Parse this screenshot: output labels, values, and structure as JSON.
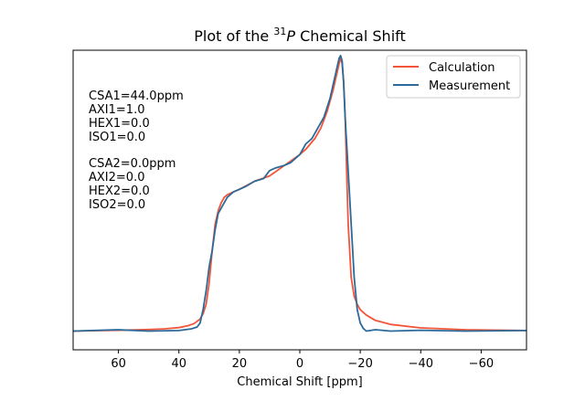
{
  "chart_data": {
    "type": "line",
    "title_main": "Plot of the ",
    "title_sup": "31",
    "title_italic": "P",
    "title_rest": " Chemical Shift",
    "xlabel": "Chemical Shift [ppm]",
    "ylabel": "",
    "xlim": [
      75,
      -75
    ],
    "ylim": [
      -0.07,
      1.05
    ],
    "x_inverted": true,
    "x_ticks": [
      60,
      40,
      20,
      0,
      -20,
      -40,
      -60
    ],
    "x_tick_labels": [
      "60",
      "40",
      "20",
      "0",
      "−20",
      "−40",
      "−60"
    ],
    "y_ticks_shown": false,
    "grid": false,
    "legend_position": "top-right",
    "annotations": [
      [
        "CSA1=44.0ppm",
        "AXI1=1.0",
        "HEX1=0.0",
        "ISO1=0.0"
      ],
      [
        "CSA2=0.0ppm",
        "AXI2=0.0",
        "HEX2=0.0",
        "ISO2=0.0"
      ]
    ],
    "series": [
      {
        "name": "Calculation",
        "color": "#f4553a",
        "x": [
          75,
          60,
          50,
          45,
          40,
          37,
          35,
          33,
          32,
          31,
          30,
          29,
          28,
          27,
          26,
          25,
          24,
          22,
          20,
          15,
          10,
          5,
          0,
          -2,
          -5,
          -7,
          -9,
          -10,
          -11,
          -12,
          -13,
          -13.5,
          -14,
          -14.5,
          -15,
          -15.5,
          -16,
          -17,
          -18,
          -19,
          -20,
          -22,
          -25,
          -30,
          -40,
          -55,
          -75
        ],
        "y": [
          0.0,
          0.003,
          0.006,
          0.008,
          0.013,
          0.02,
          0.028,
          0.045,
          0.065,
          0.1,
          0.18,
          0.3,
          0.4,
          0.45,
          0.48,
          0.5,
          0.51,
          0.52,
          0.53,
          0.56,
          0.58,
          0.62,
          0.66,
          0.68,
          0.72,
          0.76,
          0.82,
          0.86,
          0.9,
          0.95,
          1.0,
          1.02,
          1.0,
          0.93,
          0.8,
          0.6,
          0.4,
          0.2,
          0.13,
          0.1,
          0.08,
          0.06,
          0.04,
          0.025,
          0.012,
          0.005,
          0.002
        ]
      },
      {
        "name": "Measurement",
        "color": "#2b6a99",
        "x": [
          75,
          60,
          50,
          40,
          36,
          34,
          33,
          32,
          31,
          30,
          29,
          28,
          27,
          26,
          25,
          24,
          22,
          20,
          18,
          15,
          12,
          10,
          8,
          5,
          3,
          0,
          -2,
          -4,
          -6,
          -8,
          -10,
          -11,
          -12,
          -13,
          -13.5,
          -14,
          -14.5,
          -15,
          -16,
          -17,
          -18,
          -19,
          -20,
          -21,
          -22,
          -25,
          -30,
          -40,
          -55,
          -75
        ],
        "y": [
          0.0,
          0.005,
          0.0,
          0.002,
          0.008,
          0.015,
          0.03,
          0.08,
          0.15,
          0.24,
          0.3,
          0.38,
          0.44,
          0.46,
          0.48,
          0.5,
          0.52,
          0.53,
          0.54,
          0.56,
          0.57,
          0.6,
          0.61,
          0.62,
          0.63,
          0.66,
          0.7,
          0.72,
          0.76,
          0.8,
          0.87,
          0.92,
          0.97,
          1.02,
          1.03,
          1.01,
          0.93,
          0.8,
          0.6,
          0.4,
          0.2,
          0.08,
          0.03,
          0.01,
          0.0,
          0.005,
          0.0,
          0.003,
          0.0,
          0.002
        ]
      }
    ]
  }
}
